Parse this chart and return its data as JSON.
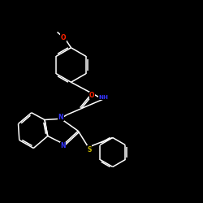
{
  "background_color": "#000000",
  "bond_color": "#ffffff",
  "atom_colors": {
    "O": "#ff2200",
    "N": "#3333ff",
    "S": "#ccbb00",
    "C": "#ffffff",
    "H": "#ffffff"
  }
}
